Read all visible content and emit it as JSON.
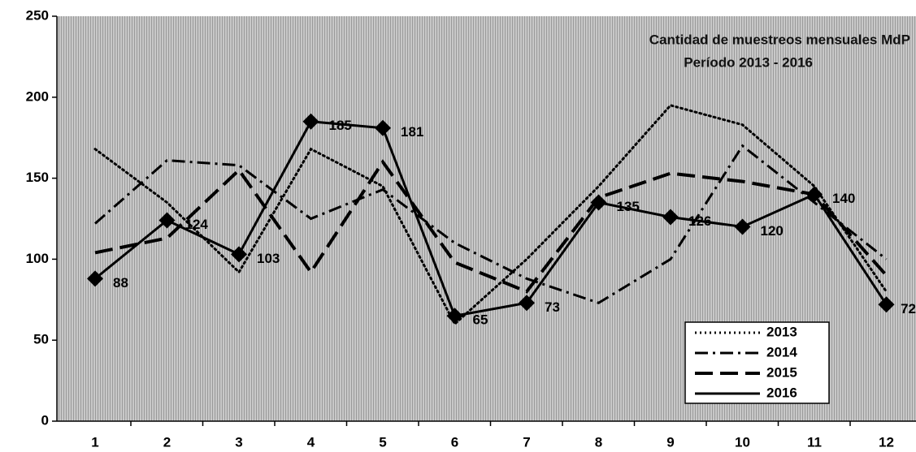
{
  "chart_data": {
    "type": "line",
    "title": "Cantidad de muestreos mensuales MdP",
    "subtitle": "Período 2013 - 2016",
    "categories": [
      "1",
      "2",
      "3",
      "4",
      "5",
      "6",
      "7",
      "8",
      "9",
      "10",
      "11",
      "12"
    ],
    "ylim": [
      0,
      250
    ],
    "yticks": [
      0,
      50,
      100,
      150,
      200,
      250
    ],
    "legend": "lower right",
    "series": [
      {
        "name": "2013",
        "color": "#000000",
        "dash": "dotted",
        "values": [
          168,
          135,
          92,
          168,
          145,
          60,
          100,
          145,
          195,
          183,
          145,
          80
        ]
      },
      {
        "name": "2014",
        "color": "#000000",
        "dash": "dash-dot",
        "values": [
          122,
          161,
          158,
          125,
          143,
          110,
          88,
          73,
          100,
          170,
          135,
          100
        ]
      },
      {
        "name": "2015",
        "color": "#000000",
        "dash": "dashed",
        "values": [
          104,
          113,
          155,
          92,
          160,
          98,
          80,
          138,
          153,
          148,
          140,
          90
        ]
      },
      {
        "name": "2016",
        "color": "#000000",
        "dash": "solid",
        "marker": "diamond",
        "labels": true,
        "values": [
          88,
          124,
          103,
          185,
          181,
          65,
          73,
          135,
          126,
          120,
          140,
          72
        ]
      }
    ]
  }
}
